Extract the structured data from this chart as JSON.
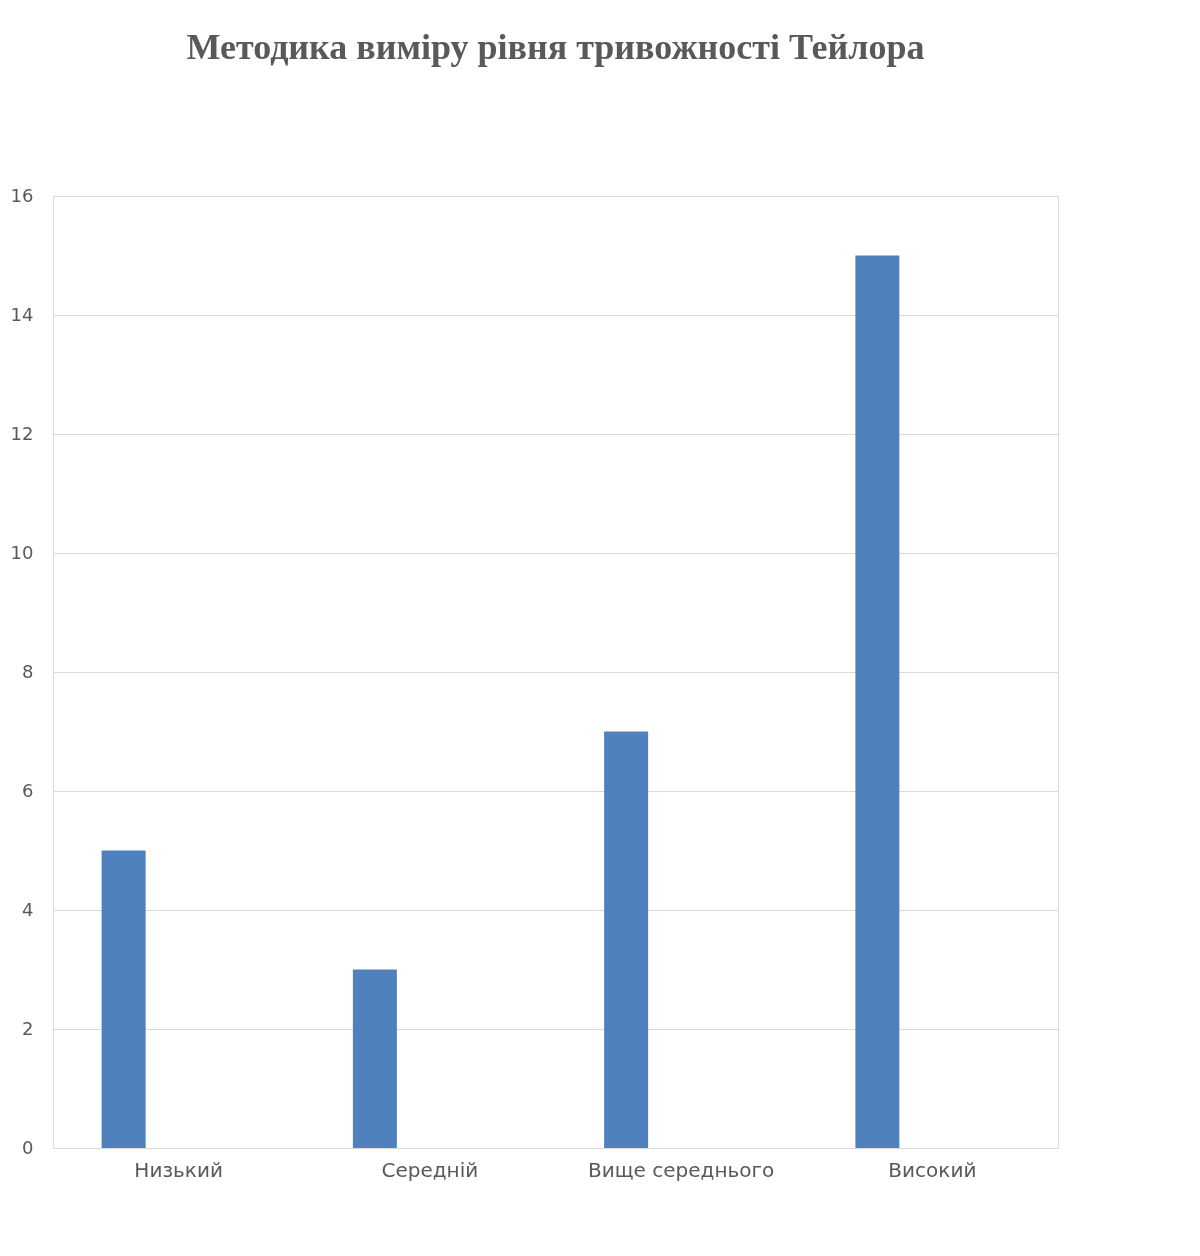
{
  "chart_data": {
    "type": "bar",
    "title": "Методика виміру рівня тривожності Тейлора",
    "categories": [
      "Низький",
      "Середній",
      "Вище середнього",
      "Високий"
    ],
    "values": [
      5,
      3,
      7,
      15
    ],
    "color": "#4f81bd",
    "ylim": [
      0,
      16
    ],
    "yticks": [
      0,
      2,
      4,
      6,
      8,
      10,
      12,
      14,
      16
    ],
    "grid": "y"
  }
}
